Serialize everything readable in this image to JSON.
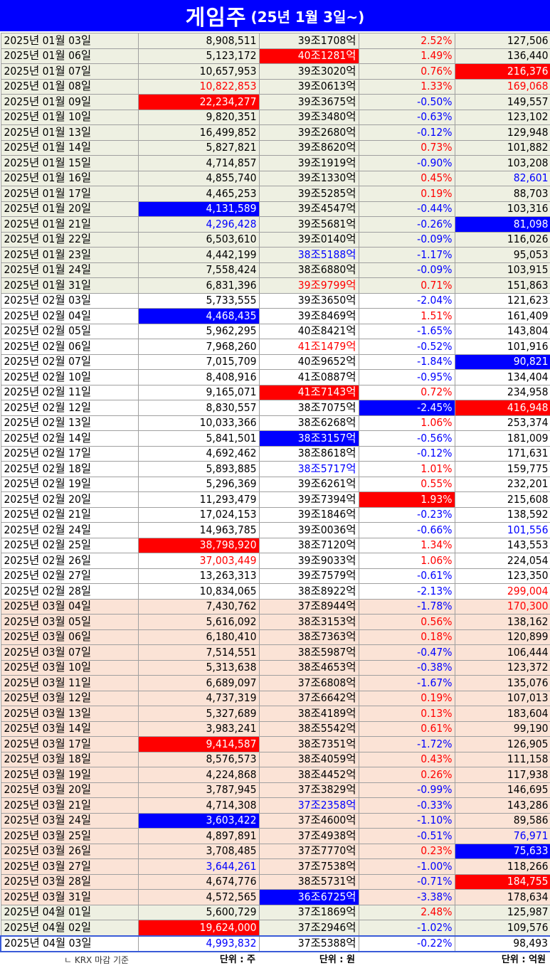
{
  "title": {
    "main": "게임주",
    "sub": "(25년 1월  3일~)"
  },
  "colors": {
    "header_bg": "#0000ff",
    "highlight_red": "#ff0000",
    "highlight_blue": "#0000ff",
    "jan_feb_row": "#eef0e2",
    "mar_row": "#fbe3d6"
  },
  "rows": [
    {
      "g": "jan",
      "c": [
        "2025년 01월 03일",
        "8,908,511",
        "39조1708억",
        "2.52%",
        "127,506"
      ],
      "s": [
        "",
        "",
        "",
        "r",
        ""
      ]
    },
    {
      "g": "jan",
      "c": [
        "2025년 01월 06일",
        "5,123,172",
        "40조1281억",
        "1.49%",
        "136,440"
      ],
      "s": [
        "",
        "",
        "R",
        "r",
        ""
      ]
    },
    {
      "g": "jan",
      "c": [
        "2025년 01월 07일",
        "10,657,953",
        "39조3020억",
        "0.76%",
        "216,376"
      ],
      "s": [
        "",
        "",
        "",
        "r",
        "R"
      ]
    },
    {
      "g": "jan",
      "c": [
        "2025년 01월 08일",
        "10,822,853",
        "39조0613억",
        "1.33%",
        "169,068"
      ],
      "s": [
        "",
        "r",
        "",
        "r",
        "r"
      ]
    },
    {
      "g": "jan",
      "c": [
        "2025년 01월 09일",
        "22,234,277",
        "39조3675억",
        "-0.50%",
        "149,557"
      ],
      "s": [
        "",
        "R",
        "",
        "b",
        ""
      ]
    },
    {
      "g": "jan",
      "c": [
        "2025년 01월 10일",
        "9,820,351",
        "39조3480억",
        "-0.63%",
        "123,102"
      ],
      "s": [
        "",
        "",
        "",
        "b",
        ""
      ]
    },
    {
      "g": "jan",
      "c": [
        "2025년 01월 13일",
        "16,499,852",
        "39조2680억",
        "-0.12%",
        "129,948"
      ],
      "s": [
        "",
        "",
        "",
        "b",
        ""
      ]
    },
    {
      "g": "jan",
      "c": [
        "2025년 01월 14일",
        "5,827,821",
        "39조8620억",
        "0.73%",
        "101,882"
      ],
      "s": [
        "",
        "",
        "",
        "r",
        ""
      ]
    },
    {
      "g": "jan",
      "c": [
        "2025년 01월 15일",
        "4,714,857",
        "39조1919억",
        "-0.90%",
        "103,208"
      ],
      "s": [
        "",
        "",
        "",
        "b",
        ""
      ]
    },
    {
      "g": "jan",
      "c": [
        "2025년 01월 16일",
        "4,855,740",
        "39조1330억",
        "0.45%",
        "82,601"
      ],
      "s": [
        "",
        "",
        "",
        "r",
        "b"
      ]
    },
    {
      "g": "jan",
      "c": [
        "2025년 01월 17일",
        "4,465,253",
        "39조5285억",
        "0.19%",
        "88,703"
      ],
      "s": [
        "",
        "",
        "",
        "r",
        ""
      ]
    },
    {
      "g": "jan",
      "c": [
        "2025년 01월 20일",
        "4,131,589",
        "39조4547억",
        "-0.44%",
        "103,316"
      ],
      "s": [
        "",
        "B",
        "",
        "b",
        ""
      ]
    },
    {
      "g": "jan",
      "c": [
        "2025년 01월 21일",
        "4,296,428",
        "39조5681억",
        "-0.26%",
        "81,098"
      ],
      "s": [
        "",
        "b",
        "",
        "b",
        "B"
      ]
    },
    {
      "g": "jan",
      "c": [
        "2025년 01월 22일",
        "6,503,610",
        "39조0140억",
        "-0.09%",
        "116,026"
      ],
      "s": [
        "",
        "",
        "",
        "b",
        ""
      ]
    },
    {
      "g": "jan",
      "c": [
        "2025년 01월 23일",
        "4,442,199",
        "38조5188억",
        "-1.17%",
        "95,053"
      ],
      "s": [
        "",
        "",
        "b",
        "b",
        ""
      ]
    },
    {
      "g": "jan",
      "c": [
        "2025년 01월 24일",
        "7,558,424",
        "38조6880억",
        "-0.09%",
        "103,915"
      ],
      "s": [
        "",
        "",
        "",
        "b",
        ""
      ]
    },
    {
      "g": "jan",
      "c": [
        "2025년 01월 31일",
        "6,831,396",
        "39조9799억",
        "0.71%",
        "151,863"
      ],
      "s": [
        "",
        "",
        "r",
        "r",
        ""
      ]
    },
    {
      "g": "feb",
      "c": [
        "2025년 02월 03일",
        "5,733,555",
        "39조3650억",
        "-2.04%",
        "121,623"
      ],
      "s": [
        "",
        "",
        "",
        "b",
        ""
      ]
    },
    {
      "g": "feb",
      "c": [
        "2025년 02월 04일",
        "4,468,435",
        "39조8469억",
        "1.51%",
        "161,409"
      ],
      "s": [
        "",
        "B",
        "",
        "r",
        ""
      ]
    },
    {
      "g": "feb",
      "c": [
        "2025년 02월 05일",
        "5,962,295",
        "40조8421억",
        "-1.65%",
        "143,804"
      ],
      "s": [
        "",
        "",
        "",
        "b",
        ""
      ]
    },
    {
      "g": "feb",
      "c": [
        "2025년 02월 06일",
        "7,968,260",
        "41조1479억",
        "-0.52%",
        "101,916"
      ],
      "s": [
        "",
        "",
        "r",
        "b",
        ""
      ]
    },
    {
      "g": "feb",
      "c": [
        "2025년 02월 07일",
        "7,015,709",
        "40조9652억",
        "-1.84%",
        "90,821"
      ],
      "s": [
        "",
        "",
        "",
        "b",
        "B"
      ]
    },
    {
      "g": "feb",
      "c": [
        "2025년 02월 10일",
        "8,408,916",
        "41조0887억",
        "-0.95%",
        "134,404"
      ],
      "s": [
        "",
        "",
        "",
        "b",
        ""
      ]
    },
    {
      "g": "feb",
      "c": [
        "2025년 02월 11일",
        "9,165,071",
        "41조7143억",
        "0.72%",
        "234,958"
      ],
      "s": [
        "",
        "",
        "R",
        "r",
        ""
      ]
    },
    {
      "g": "feb",
      "c": [
        "2025년 02월 12일",
        "8,830,557",
        "38조7075억",
        "-2.45%",
        "416,948"
      ],
      "s": [
        "",
        "",
        "",
        "B",
        "R"
      ]
    },
    {
      "g": "feb",
      "c": [
        "2025년 02월 13일",
        "10,033,366",
        "38조6268억",
        "1.06%",
        "253,374"
      ],
      "s": [
        "",
        "",
        "",
        "r",
        ""
      ]
    },
    {
      "g": "feb",
      "c": [
        "2025년 02월 14일",
        "5,841,501",
        "38조3157억",
        "-0.56%",
        "181,009"
      ],
      "s": [
        "",
        "",
        "B",
        "b",
        ""
      ]
    },
    {
      "g": "feb",
      "c": [
        "2025년 02월 17일",
        "4,692,462",
        "38조8618억",
        "-0.12%",
        "171,631"
      ],
      "s": [
        "",
        "",
        "",
        "b",
        ""
      ]
    },
    {
      "g": "feb",
      "c": [
        "2025년 02월 18일",
        "5,893,885",
        "38조5717억",
        "1.01%",
        "159,775"
      ],
      "s": [
        "",
        "",
        "b",
        "r",
        ""
      ]
    },
    {
      "g": "feb",
      "c": [
        "2025년 02월 19일",
        "5,296,369",
        "39조6261억",
        "0.55%",
        "232,201"
      ],
      "s": [
        "",
        "",
        "",
        "r",
        ""
      ]
    },
    {
      "g": "feb",
      "c": [
        "2025년 02월 20일",
        "11,293,479",
        "39조7394억",
        "1.93%",
        "215,608"
      ],
      "s": [
        "",
        "",
        "",
        "R",
        ""
      ]
    },
    {
      "g": "feb",
      "c": [
        "2025년 02월 21일",
        "17,024,153",
        "39조1846억",
        "-0.23%",
        "138,592"
      ],
      "s": [
        "",
        "",
        "",
        "b",
        ""
      ]
    },
    {
      "g": "feb",
      "c": [
        "2025년 02월 24일",
        "14,963,785",
        "39조0036억",
        "-0.66%",
        "101,556"
      ],
      "s": [
        "",
        "",
        "",
        "b",
        "b"
      ]
    },
    {
      "g": "feb",
      "c": [
        "2025년 02월 25일",
        "38,798,920",
        "38조7120억",
        "1.34%",
        "143,553"
      ],
      "s": [
        "",
        "R",
        "",
        "r",
        ""
      ]
    },
    {
      "g": "feb",
      "c": [
        "2025년 02월 26일",
        "37,003,449",
        "39조9033억",
        "1.06%",
        "224,054"
      ],
      "s": [
        "",
        "r",
        "",
        "r",
        ""
      ]
    },
    {
      "g": "feb",
      "c": [
        "2025년 02월 27일",
        "13,263,313",
        "39조7579억",
        "-0.61%",
        "123,350"
      ],
      "s": [
        "",
        "",
        "",
        "b",
        ""
      ]
    },
    {
      "g": "feb",
      "c": [
        "2025년 02월 28일",
        "10,834,065",
        "38조8922억",
        "-2.13%",
        "299,004"
      ],
      "s": [
        "",
        "",
        "",
        "b",
        "r"
      ]
    },
    {
      "g": "mar",
      "c": [
        "2025년 03월 04일",
        "7,430,762",
        "37조8944억",
        "-1.78%",
        "170,300"
      ],
      "s": [
        "",
        "",
        "",
        "b",
        "r"
      ]
    },
    {
      "g": "mar",
      "c": [
        "2025년 03월 05일",
        "5,616,092",
        "38조3153억",
        "0.56%",
        "138,162"
      ],
      "s": [
        "",
        "",
        "",
        "r",
        ""
      ]
    },
    {
      "g": "mar",
      "c": [
        "2025년 03월 06일",
        "6,180,410",
        "38조7363억",
        "0.18%",
        "120,899"
      ],
      "s": [
        "",
        "",
        "",
        "r",
        ""
      ]
    },
    {
      "g": "mar",
      "c": [
        "2025년 03월 07일",
        "7,514,551",
        "38조5987억",
        "-0.47%",
        "106,444"
      ],
      "s": [
        "",
        "",
        "",
        "b",
        ""
      ]
    },
    {
      "g": "mar",
      "c": [
        "2025년 03월 10일",
        "5,313,638",
        "38조4653억",
        "-0.38%",
        "123,372"
      ],
      "s": [
        "",
        "",
        "",
        "b",
        ""
      ]
    },
    {
      "g": "mar",
      "c": [
        "2025년 03월 11일",
        "6,689,097",
        "37조6808억",
        "-1.67%",
        "135,076"
      ],
      "s": [
        "",
        "",
        "",
        "b",
        ""
      ]
    },
    {
      "g": "mar",
      "c": [
        "2025년 03월 12일",
        "4,737,319",
        "37조6642억",
        "0.19%",
        "107,013"
      ],
      "s": [
        "",
        "",
        "",
        "r",
        ""
      ]
    },
    {
      "g": "mar",
      "c": [
        "2025년 03월 13일",
        "5,327,689",
        "38조4189억",
        "0.13%",
        "183,604"
      ],
      "s": [
        "",
        "",
        "",
        "r",
        ""
      ]
    },
    {
      "g": "mar",
      "c": [
        "2025년 03월 14일",
        "3,983,241",
        "38조5542억",
        "0.61%",
        "99,190"
      ],
      "s": [
        "",
        "",
        "",
        "r",
        ""
      ]
    },
    {
      "g": "mar",
      "c": [
        "2025년 03월 17일",
        "9,414,587",
        "38조7351억",
        "-1.72%",
        "126,905"
      ],
      "s": [
        "",
        "R",
        "",
        "b",
        ""
      ]
    },
    {
      "g": "mar",
      "c": [
        "2025년 03월 18일",
        "8,576,573",
        "38조4059억",
        "0.43%",
        "111,158"
      ],
      "s": [
        "",
        "",
        "",
        "r",
        ""
      ]
    },
    {
      "g": "mar",
      "c": [
        "2025년 03월 19일",
        "4,224,868",
        "38조4452억",
        "0.26%",
        "117,938"
      ],
      "s": [
        "",
        "",
        "",
        "r",
        ""
      ]
    },
    {
      "g": "mar",
      "c": [
        "2025년 03월 20일",
        "3,787,945",
        "37조3829억",
        "-0.99%",
        "146,695"
      ],
      "s": [
        "",
        "",
        "",
        "b",
        ""
      ]
    },
    {
      "g": "mar",
      "c": [
        "2025년 03월 21일",
        "4,714,308",
        "37조2358억",
        "-0.33%",
        "143,286"
      ],
      "s": [
        "",
        "",
        "b",
        "b",
        ""
      ]
    },
    {
      "g": "mar",
      "c": [
        "2025년 03월 24일",
        "3,603,422",
        "37조4600억",
        "-1.10%",
        "89,586"
      ],
      "s": [
        "",
        "B",
        "",
        "b",
        ""
      ]
    },
    {
      "g": "mar",
      "c": [
        "2025년 03월 25일",
        "4,897,891",
        "37조4938억",
        "-0.51%",
        "76,971"
      ],
      "s": [
        "",
        "",
        "",
        "b",
        "b"
      ]
    },
    {
      "g": "mar",
      "c": [
        "2025년 03월 26일",
        "3,708,485",
        "37조7770억",
        "0.23%",
        "75,633"
      ],
      "s": [
        "",
        "",
        "",
        "r",
        "B"
      ]
    },
    {
      "g": "mar",
      "c": [
        "2025년 03월 27일",
        "3,644,261",
        "37조7538억",
        "-1.00%",
        "118,266"
      ],
      "s": [
        "",
        "b",
        "",
        "b",
        ""
      ]
    },
    {
      "g": "mar",
      "c": [
        "2025년 03월 28일",
        "4,674,776",
        "38조5731억",
        "-0.71%",
        "184,755"
      ],
      "s": [
        "",
        "",
        "",
        "b",
        "R"
      ]
    },
    {
      "g": "mar",
      "c": [
        "2025년 03월 31일",
        "4,572,565",
        "36조6725억",
        "-3.38%",
        "178,634"
      ],
      "s": [
        "",
        "",
        "B",
        "b",
        ""
      ]
    },
    {
      "g": "apr",
      "c": [
        "2025년 04월 01일",
        "5,600,729",
        "37조1869억",
        "2.48%",
        "125,987"
      ],
      "s": [
        "",
        "",
        "",
        "r",
        ""
      ]
    },
    {
      "g": "apr",
      "c": [
        "2025년 04월 02일",
        "19,624,000",
        "37조2946억",
        "-1.02%",
        "109,576"
      ],
      "s": [
        "",
        "R",
        "",
        "b",
        ""
      ]
    },
    {
      "g": "last",
      "c": [
        "2025년 04월 03일",
        "4,993,832",
        "37조5388억",
        "-0.22%",
        "98,493"
      ],
      "s": [
        "",
        "b",
        "",
        "b",
        ""
      ]
    }
  ],
  "footer": {
    "note": "ㄴ KRX 마감 기준",
    "unit_volume": "단위 : 주",
    "unit_cap": "단위 : 원",
    "unit_value": "단위 : 억원"
  }
}
